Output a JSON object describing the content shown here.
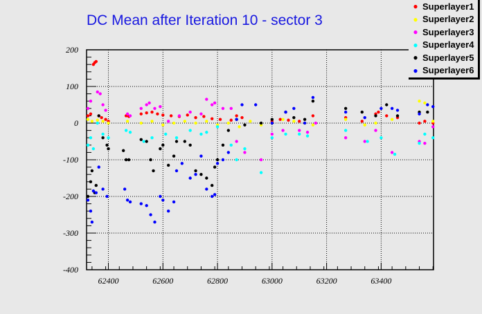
{
  "chart_data": {
    "type": "scatter",
    "title": "DC Mean after Iteration 10 - sector 3",
    "xlabel": "",
    "ylabel": "",
    "xlim": [
      62320,
      63592
    ],
    "ylim": [
      -400,
      200
    ],
    "grid": true,
    "legend_placement": "top-right",
    "xticks": [
      "62400",
      "62600",
      "62800",
      "63000",
      "63200",
      "63400"
    ],
    "xtick_values": [
      62400,
      62600,
      62800,
      63000,
      63200,
      63400
    ],
    "yticks": [
      "200",
      "100",
      "0",
      "-100",
      "-200",
      "-300",
      "-400"
    ],
    "ytick_values": [
      200,
      100,
      0,
      -100,
      -200,
      -300,
      -400
    ],
    "series": [
      {
        "name": "Superlayer1",
        "color": "#ff0000",
        "x": [
          62325,
          62335,
          62345,
          62350,
          62355,
          62365,
          62375,
          62390,
          62400,
          62465,
          62475,
          62520,
          62540,
          62560,
          62580,
          62600,
          62630,
          62660,
          62690,
          62720,
          62750,
          62780,
          62810,
          62850,
          62870,
          62890,
          63000,
          63030,
          63060,
          63100,
          63150,
          63270,
          63330,
          63380,
          63390,
          63420,
          63460,
          63540,
          63560,
          63590
        ],
        "y": [
          20,
          25,
          160,
          165,
          168,
          20,
          15,
          10,
          5,
          20,
          18,
          25,
          28,
          30,
          25,
          22,
          20,
          18,
          22,
          15,
          18,
          12,
          10,
          8,
          20,
          15,
          5,
          10,
          8,
          5,
          20,
          15,
          5,
          25,
          30,
          20,
          15,
          0,
          5,
          0
        ]
      },
      {
        "name": "Superlayer2",
        "color": "#ffff00",
        "x": [
          62325,
          62340,
          62360,
          62380,
          62400,
          62470,
          62520,
          62560,
          62600,
          62640,
          62680,
          62720,
          62760,
          62800,
          62840,
          62880,
          62920,
          62960,
          63000,
          63040,
          63080,
          63120,
          63150,
          63270,
          63340,
          63380,
          63440,
          63540,
          63560,
          63590
        ],
        "y": [
          10,
          5,
          8,
          5,
          0,
          5,
          0,
          5,
          -5,
          0,
          5,
          0,
          5,
          -5,
          0,
          -10,
          5,
          -5,
          0,
          10,
          5,
          0,
          -5,
          10,
          -5,
          0,
          10,
          60,
          55,
          5
        ]
      },
      {
        "name": "Superlayer3",
        "color": "#ff00ff",
        "x": [
          62325,
          62335,
          62360,
          62370,
          62380,
          62390,
          62470,
          62480,
          62520,
          62540,
          62550,
          62570,
          62590,
          62620,
          62660,
          62700,
          62740,
          62760,
          62780,
          62790,
          62820,
          62850,
          62870,
          62900,
          62960,
          63000,
          63040,
          63100,
          63130,
          63160,
          63270,
          63340,
          63380,
          63440,
          63540,
          63560,
          63590
        ],
        "y": [
          40,
          60,
          85,
          80,
          50,
          35,
          25,
          20,
          40,
          50,
          55,
          40,
          45,
          5,
          20,
          30,
          25,
          65,
          50,
          55,
          40,
          40,
          -50,
          -80,
          -100,
          -30,
          -20,
          -20,
          -25,
          0,
          -40,
          -50,
          -20,
          -80,
          -50,
          -55,
          -10
        ]
      },
      {
        "name": "Superlayer4",
        "color": "#00ffff",
        "x": [
          62325,
          62335,
          62345,
          62360,
          62380,
          62400,
          62465,
          62480,
          62530,
          62560,
          62610,
          62650,
          62700,
          62740,
          62760,
          62800,
          62850,
          62870,
          62900,
          62960,
          63000,
          63050,
          63100,
          63130,
          63270,
          63350,
          63400,
          63450,
          63540,
          63560,
          63590
        ],
        "y": [
          -60,
          -40,
          -70,
          0,
          -30,
          -40,
          -20,
          -25,
          -50,
          -40,
          -30,
          -40,
          -20,
          -30,
          -25,
          -10,
          -60,
          -100,
          -70,
          -135,
          -40,
          -30,
          -30,
          -35,
          -20,
          -50,
          -40,
          -85,
          -55,
          -30,
          -40
        ]
      },
      {
        "name": "Superlayer5",
        "color": "#000000",
        "x": [
          62325,
          62335,
          62340,
          62350,
          62355,
          62365,
          62380,
          62395,
          62400,
          62455,
          62465,
          62475,
          62520,
          62540,
          62555,
          62565,
          62590,
          62600,
          62620,
          62640,
          62650,
          62680,
          62700,
          62720,
          62740,
          62760,
          62780,
          62790,
          62800,
          62820,
          62840,
          62870,
          62900,
          62960,
          63000,
          63050,
          63080,
          63120,
          63150,
          63270,
          63330,
          63380,
          63420,
          63460,
          63540,
          63570
        ],
        "y": [
          -200,
          -160,
          -130,
          -190,
          -170,
          20,
          -40,
          -60,
          -70,
          -75,
          -100,
          -100,
          -45,
          -50,
          -100,
          -130,
          -70,
          -60,
          -115,
          -90,
          -50,
          -50,
          -60,
          -130,
          -140,
          -150,
          -170,
          -120,
          -100,
          -60,
          -20,
          10,
          -5,
          0,
          10,
          30,
          15,
          10,
          60,
          40,
          30,
          20,
          50,
          20,
          30,
          30
        ]
      },
      {
        "name": "Superlayer6",
        "color": "#0000ff",
        "x": [
          62325,
          62335,
          62340,
          62345,
          62355,
          62365,
          62380,
          62395,
          62460,
          62470,
          62480,
          62520,
          62540,
          62555,
          62570,
          62590,
          62600,
          62620,
          62640,
          62650,
          62670,
          62700,
          62720,
          62740,
          62760,
          62780,
          62790,
          62800,
          62820,
          62840,
          62870,
          62890,
          62940,
          63000,
          63050,
          63080,
          63120,
          63150,
          63270,
          63340,
          63400,
          63440,
          63460,
          63540,
          63570,
          63590
        ],
        "y": [
          -210,
          -240,
          -270,
          -185,
          -190,
          -120,
          -180,
          -200,
          -180,
          -210,
          -215,
          -220,
          -225,
          -250,
          -270,
          -200,
          -210,
          -240,
          -215,
          -130,
          -110,
          -150,
          -140,
          -90,
          -180,
          -200,
          -195,
          -110,
          -100,
          -80,
          10,
          50,
          50,
          0,
          30,
          40,
          0,
          70,
          30,
          15,
          40,
          40,
          35,
          25,
          50,
          45
        ]
      }
    ]
  }
}
